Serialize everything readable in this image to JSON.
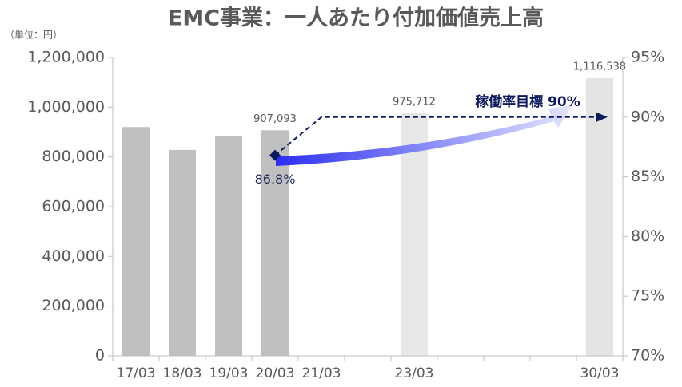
{
  "chart_data": {
    "type": "bar",
    "title": "EMC事業：一人あたり付加価値売上高",
    "unit_label": "（単位：円）",
    "categories": [
      "17/03",
      "18/03",
      "19/03",
      "20/03",
      "21/03",
      null,
      "23/03",
      null,
      null,
      null,
      "30/03"
    ],
    "series": [
      {
        "name": "一人あたり付加価値売上高",
        "type": "bar",
        "colors": [
          "#bfbfbf",
          "#bfbfbf",
          "#bfbfbf",
          "#bfbfbf",
          "#bfbfbf",
          "#bfbfbf",
          "#e8e8e8",
          "#e8e8e8",
          "#e8e8e8",
          "#e8e8e8",
          "#e4e4e4"
        ],
        "values": [
          920000,
          828000,
          885000,
          907093,
          null,
          null,
          975712,
          null,
          null,
          null,
          1116538
        ],
        "value_labels": [
          null,
          null,
          null,
          "907,093",
          null,
          null,
          "975,712",
          null,
          null,
          null,
          "1,116,538"
        ]
      },
      {
        "name": "稼働率",
        "type": "line",
        "axis": "y2",
        "color": "#0d1b5e",
        "values": [
          null,
          null,
          null,
          86.8,
          90,
          90,
          90,
          90,
          90,
          90,
          90
        ],
        "value_labels": [
          null,
          null,
          null,
          "86.8%",
          null,
          null,
          null,
          null,
          null,
          null,
          null
        ]
      }
    ],
    "annotation": "稼働率目標 90%",
    "ylim": [
      0,
      1200000
    ],
    "yticks": [
      0,
      {
        "value": 200000,
        "label": "200,000"
      },
      {
        "value": 400000,
        "label": "400,000"
      },
      {
        "value": 600000,
        "label": "600,000"
      },
      {
        "value": 800000,
        "label": "800,000"
      },
      {
        "value": 1000000,
        "label": "1,000,000"
      },
      {
        "value": 1200000,
        "label": "1,200,000"
      }
    ],
    "y2lim": [
      70,
      95
    ],
    "y2ticks": [
      {
        "value": 70,
        "label": "70%"
      },
      {
        "value": 75,
        "label": "75%"
      },
      {
        "value": 80,
        "label": "80%"
      },
      {
        "value": 85,
        "label": "85%"
      },
      {
        "value": 90,
        "label": "90%"
      },
      {
        "value": 95,
        "label": "95%"
      }
    ],
    "grid": false
  }
}
